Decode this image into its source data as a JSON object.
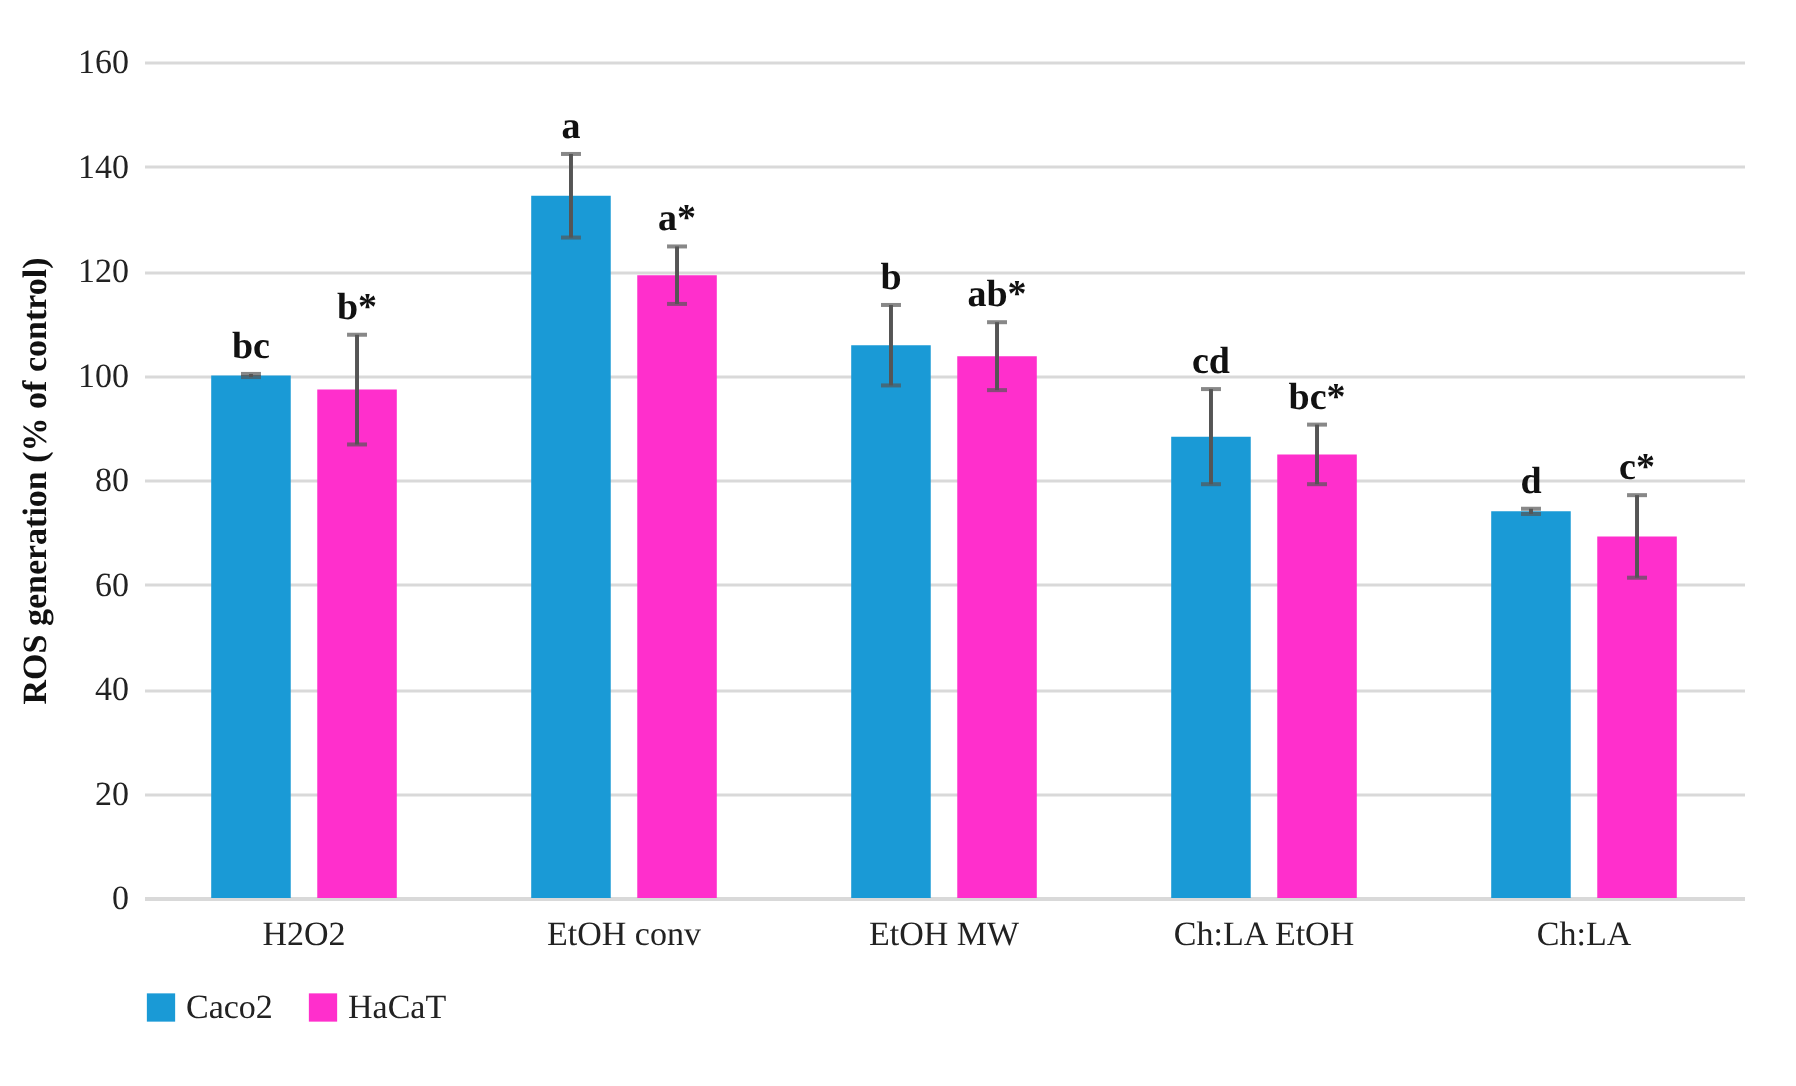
{
  "chart_data": {
    "type": "bar",
    "ylabel": "ROS generation (% of control)",
    "categories": [
      "H2O2",
      "EtOH conv",
      "EtOH MW",
      "Ch:LA EtOH",
      "Ch:LA"
    ],
    "series": [
      {
        "name": "Caco2",
        "color": "#1a9ad6",
        "values": [
          100,
          134.4,
          105.8,
          88.3,
          74.0
        ],
        "errors": [
          0.3,
          8,
          7.7,
          9.1,
          0.5
        ],
        "value_labels": [
          "bc",
          "a",
          "b",
          "cd",
          "d"
        ]
      },
      {
        "name": "HaCaT",
        "color": "#ff2fcc",
        "values": [
          97.3,
          119.2,
          103.7,
          84.9,
          69.2
        ],
        "errors": [
          10.5,
          5.5,
          6.5,
          5.7,
          7.9
        ],
        "value_labels": [
          "b*",
          "a*",
          "ab*",
          "bc*",
          "c*"
        ]
      }
    ],
    "ylim": [
      0,
      160
    ],
    "yticks": [
      0,
      20,
      40,
      60,
      80,
      100,
      120,
      140,
      160
    ],
    "grid": "y",
    "legend": "bottom"
  }
}
